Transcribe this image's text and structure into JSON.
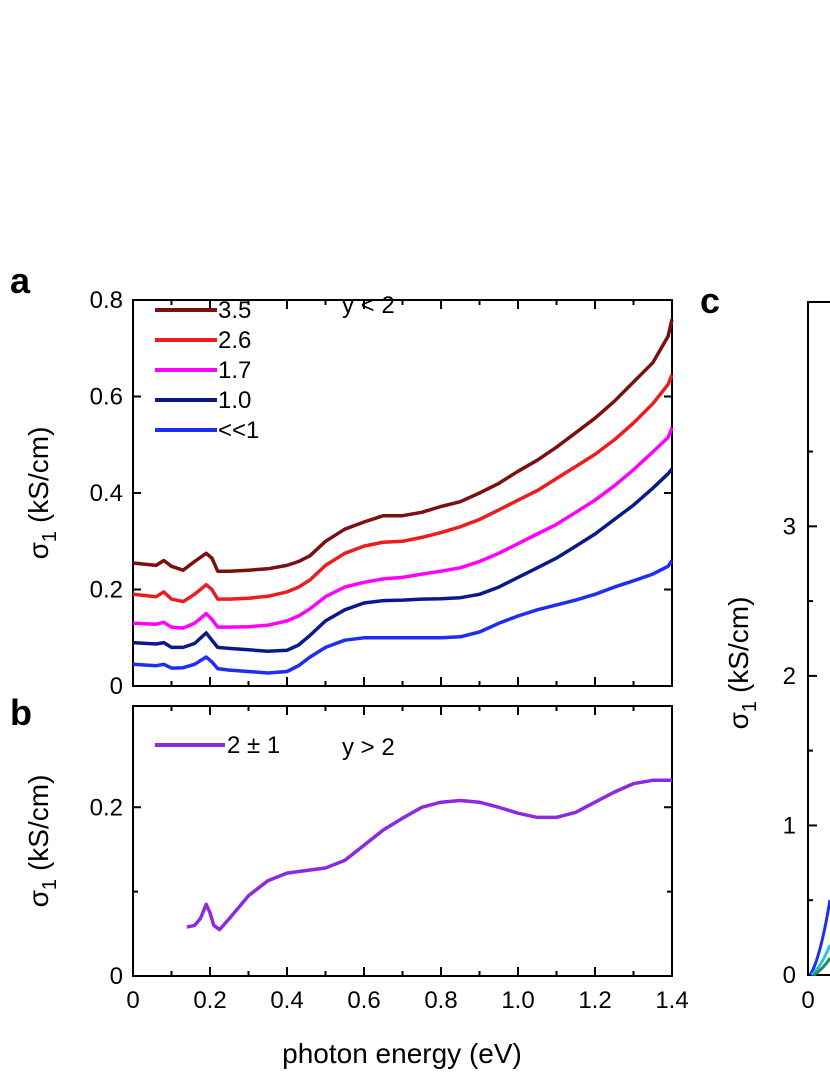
{
  "chart_data": [
    {
      "panel": "a",
      "type": "line",
      "xlim": [
        0,
        1.4
      ],
      "ylim": [
        0,
        0.8
      ],
      "yticks": [
        "0",
        "0.2",
        "0.4",
        "0.6",
        "0.8"
      ],
      "ylabel": "σ1 (kS/cm)",
      "legend_title": "y < 2",
      "legend_position": "top-left",
      "series": [
        {
          "name": "3.5",
          "color": "#7a1010",
          "x": [
            0.0,
            0.06,
            0.08,
            0.1,
            0.13,
            0.16,
            0.19,
            0.205,
            0.22,
            0.25,
            0.3,
            0.35,
            0.4,
            0.43,
            0.46,
            0.5,
            0.55,
            0.6,
            0.65,
            0.7,
            0.75,
            0.8,
            0.85,
            0.9,
            0.95,
            1.0,
            1.05,
            1.1,
            1.15,
            1.2,
            1.25,
            1.3,
            1.35,
            1.39,
            1.4
          ],
          "y": [
            0.255,
            0.25,
            0.26,
            0.248,
            0.24,
            0.258,
            0.275,
            0.265,
            0.238,
            0.238,
            0.24,
            0.243,
            0.25,
            0.258,
            0.27,
            0.3,
            0.325,
            0.34,
            0.353,
            0.353,
            0.36,
            0.372,
            0.382,
            0.4,
            0.42,
            0.445,
            0.468,
            0.495,
            0.525,
            0.555,
            0.59,
            0.63,
            0.67,
            0.725,
            0.76
          ]
        },
        {
          "name": "2.6",
          "color": "#ee1c1c",
          "x": [
            0.0,
            0.06,
            0.08,
            0.1,
            0.13,
            0.16,
            0.19,
            0.205,
            0.22,
            0.25,
            0.3,
            0.35,
            0.4,
            0.43,
            0.46,
            0.5,
            0.55,
            0.6,
            0.65,
            0.7,
            0.75,
            0.8,
            0.85,
            0.9,
            0.95,
            1.0,
            1.05,
            1.1,
            1.15,
            1.2,
            1.25,
            1.3,
            1.35,
            1.39,
            1.4
          ],
          "y": [
            0.19,
            0.185,
            0.195,
            0.18,
            0.175,
            0.19,
            0.21,
            0.2,
            0.18,
            0.18,
            0.182,
            0.186,
            0.195,
            0.205,
            0.22,
            0.25,
            0.275,
            0.29,
            0.298,
            0.3,
            0.308,
            0.318,
            0.33,
            0.345,
            0.365,
            0.385,
            0.405,
            0.43,
            0.455,
            0.48,
            0.51,
            0.545,
            0.585,
            0.625,
            0.645
          ]
        },
        {
          "name": "1.7",
          "color": "#ff00ff",
          "x": [
            0.0,
            0.06,
            0.08,
            0.1,
            0.13,
            0.16,
            0.19,
            0.205,
            0.22,
            0.25,
            0.3,
            0.35,
            0.4,
            0.43,
            0.46,
            0.5,
            0.55,
            0.6,
            0.65,
            0.7,
            0.75,
            0.8,
            0.85,
            0.9,
            0.95,
            1.0,
            1.05,
            1.1,
            1.15,
            1.2,
            1.25,
            1.3,
            1.35,
            1.39,
            1.4
          ],
          "y": [
            0.13,
            0.128,
            0.132,
            0.122,
            0.12,
            0.13,
            0.15,
            0.138,
            0.122,
            0.122,
            0.123,
            0.126,
            0.135,
            0.145,
            0.16,
            0.185,
            0.205,
            0.215,
            0.222,
            0.225,
            0.232,
            0.238,
            0.245,
            0.258,
            0.275,
            0.295,
            0.315,
            0.335,
            0.36,
            0.385,
            0.415,
            0.448,
            0.485,
            0.515,
            0.535
          ]
        },
        {
          "name": "1.0",
          "color": "#0a1a8a",
          "x": [
            0.0,
            0.06,
            0.08,
            0.1,
            0.13,
            0.16,
            0.19,
            0.205,
            0.22,
            0.25,
            0.3,
            0.35,
            0.4,
            0.43,
            0.46,
            0.5,
            0.55,
            0.6,
            0.65,
            0.7,
            0.75,
            0.8,
            0.85,
            0.9,
            0.95,
            1.0,
            1.05,
            1.1,
            1.15,
            1.2,
            1.25,
            1.3,
            1.35,
            1.39,
            1.4
          ],
          "y": [
            0.09,
            0.087,
            0.09,
            0.08,
            0.08,
            0.088,
            0.11,
            0.095,
            0.08,
            0.078,
            0.075,
            0.072,
            0.074,
            0.085,
            0.105,
            0.135,
            0.158,
            0.172,
            0.177,
            0.178,
            0.18,
            0.181,
            0.183,
            0.19,
            0.205,
            0.225,
            0.245,
            0.265,
            0.29,
            0.315,
            0.345,
            0.375,
            0.41,
            0.44,
            0.45
          ]
        },
        {
          "name": "<<1",
          "color": "#1e2ef5",
          "x": [
            0.0,
            0.06,
            0.08,
            0.1,
            0.13,
            0.16,
            0.19,
            0.205,
            0.22,
            0.25,
            0.3,
            0.35,
            0.4,
            0.43,
            0.46,
            0.5,
            0.55,
            0.6,
            0.65,
            0.7,
            0.75,
            0.8,
            0.85,
            0.9,
            0.95,
            1.0,
            1.05,
            1.1,
            1.15,
            1.2,
            1.25,
            1.3,
            1.35,
            1.39,
            1.4
          ],
          "y": [
            0.045,
            0.042,
            0.045,
            0.037,
            0.038,
            0.045,
            0.06,
            0.05,
            0.036,
            0.033,
            0.03,
            0.027,
            0.03,
            0.042,
            0.06,
            0.08,
            0.095,
            0.1,
            0.1,
            0.1,
            0.1,
            0.1,
            0.102,
            0.112,
            0.13,
            0.145,
            0.158,
            0.168,
            0.178,
            0.19,
            0.205,
            0.218,
            0.232,
            0.248,
            0.26
          ]
        }
      ]
    },
    {
      "panel": "b",
      "type": "line",
      "xlim": [
        0,
        1.4
      ],
      "ylim": [
        0,
        0.32
      ],
      "xticks": [
        "0",
        "0.2",
        "0.4",
        "0.6",
        "0.8",
        "1.0",
        "1.2",
        "1.4"
      ],
      "yticks": [
        "0",
        "0.2"
      ],
      "ylabel": "σ1 (kS/cm)",
      "xlabel": "photon energy (eV)",
      "legend_title": "y > 2",
      "legend_position": "top-left",
      "series": [
        {
          "name": "2 ± 1",
          "color": "#8a2be2",
          "x": [
            0.14,
            0.16,
            0.175,
            0.19,
            0.2,
            0.21,
            0.225,
            0.25,
            0.3,
            0.35,
            0.4,
            0.45,
            0.5,
            0.55,
            0.6,
            0.65,
            0.7,
            0.75,
            0.8,
            0.85,
            0.9,
            0.95,
            1.0,
            1.05,
            1.1,
            1.15,
            1.2,
            1.25,
            1.3,
            1.35,
            1.4
          ],
          "y": [
            0.058,
            0.06,
            0.068,
            0.085,
            0.075,
            0.06,
            0.055,
            0.068,
            0.095,
            0.113,
            0.122,
            0.125,
            0.128,
            0.137,
            0.155,
            0.173,
            0.187,
            0.2,
            0.206,
            0.208,
            0.206,
            0.2,
            0.193,
            0.188,
            0.188,
            0.194,
            0.206,
            0.218,
            0.228,
            0.232,
            0.232
          ]
        }
      ]
    },
    {
      "panel": "c",
      "type": "line",
      "yticks": [
        "0",
        "1",
        "2",
        "3"
      ],
      "xticks": [
        "0"
      ],
      "ylabel": "σ1 (kS/cm)",
      "ylim": [
        0,
        4.5
      ]
    }
  ],
  "labels": {
    "panel_a": "a",
    "panel_b": "b",
    "panel_c": "c",
    "ylabel_sigma": "σ",
    "ylabel_sub": "1",
    "ylabel_unit": "(kS/cm)",
    "xlabel": "photon energy (eV)"
  }
}
